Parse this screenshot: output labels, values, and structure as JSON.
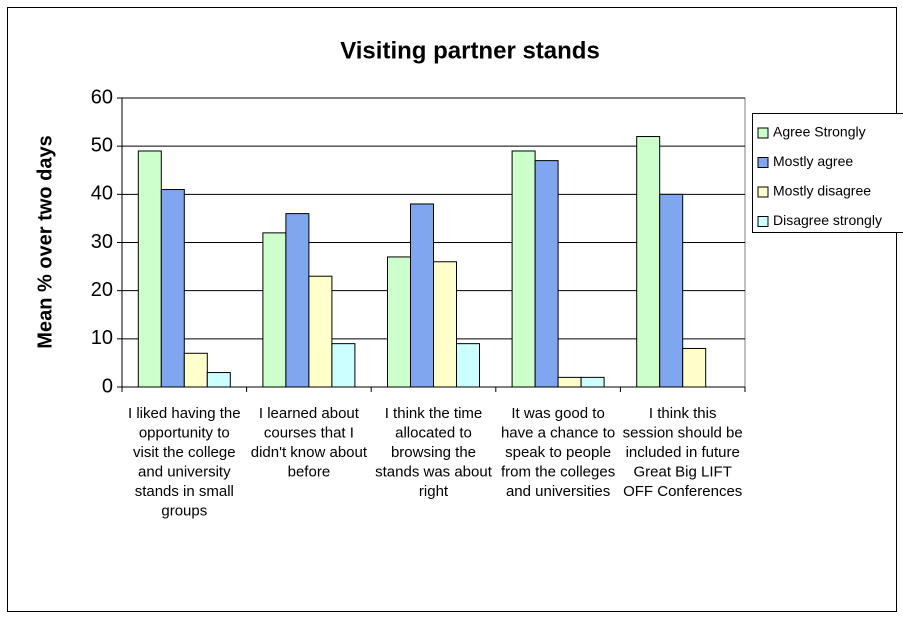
{
  "chart_data": {
    "type": "bar",
    "title": "Visiting partner stands",
    "y_label": "Mean % over two days",
    "categories": [
      "I liked having the opportunity to visit the college and university stands in small groups",
      "I learned about courses that I didn't know about before",
      "I think the time allocated to browsing the stands was about right",
      "It was good to have a chance to speak to people from the colleges and universities",
      "I think this session should be included in future Great Big LIFT OFF Conferences"
    ],
    "series": [
      {
        "name": "Agree Strongly",
        "color": "#ccffcc",
        "values": [
          49,
          32,
          27,
          49,
          52
        ]
      },
      {
        "name": "Mostly agree",
        "color": "#7fa6ee",
        "values": [
          41,
          36,
          38,
          47,
          40
        ]
      },
      {
        "name": "Mostly disagree",
        "color": "#ffffcc",
        "values": [
          7,
          23,
          26,
          2,
          8
        ]
      },
      {
        "name": "Disagree strongly",
        "color": "#ccffff",
        "values": [
          3,
          9,
          9,
          2,
          0
        ]
      }
    ],
    "ylim": [
      0,
      60
    ],
    "yticks": [
      0,
      10,
      20,
      30,
      40,
      50,
      60
    ],
    "grid": true,
    "legend": "right"
  }
}
